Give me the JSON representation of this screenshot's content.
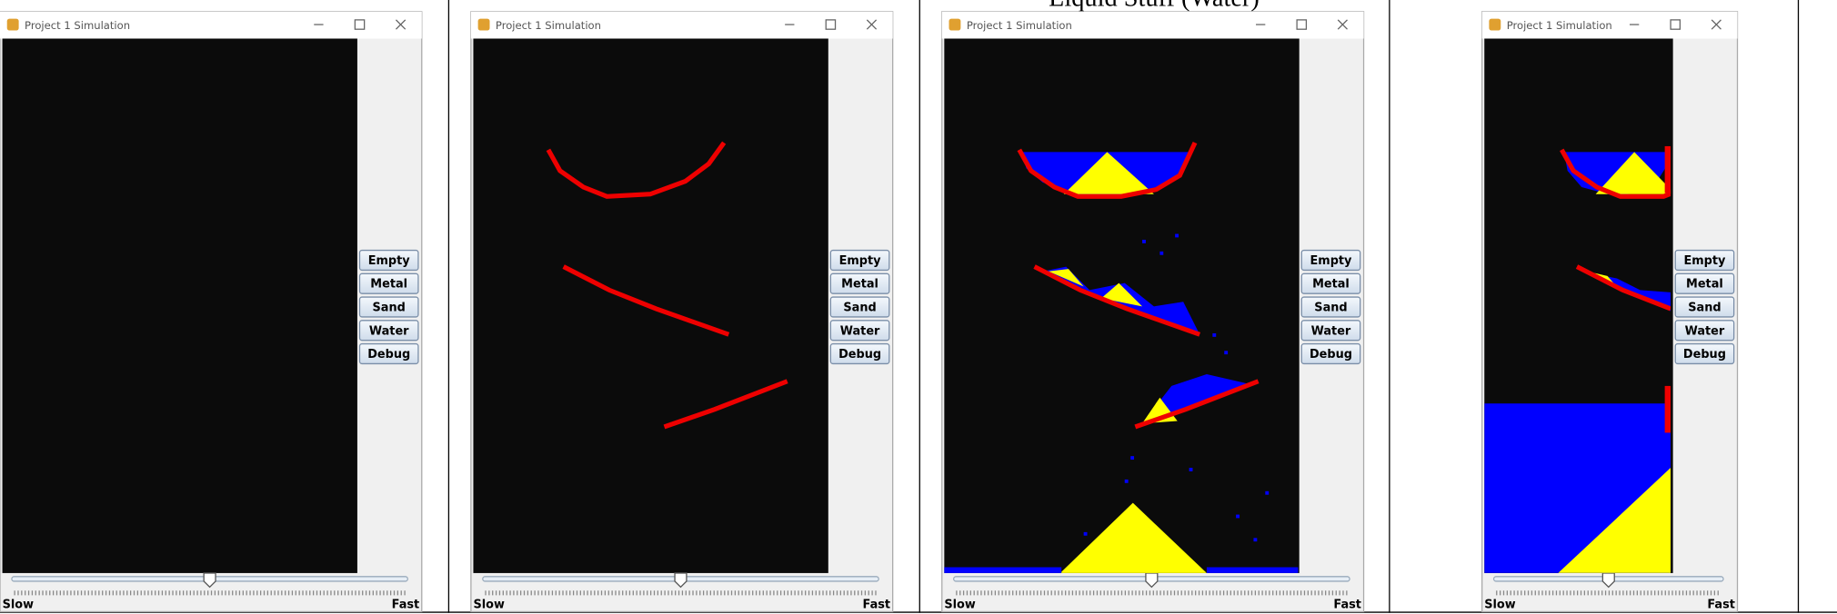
{
  "header": "Liquid Stuff (Water)",
  "windows": [
    {
      "title": "Project 1 Simulation",
      "buttons": [
        "Empty",
        "Metal",
        "Sand",
        "Water",
        "Debug"
      ],
      "slider": {
        "min_label": "Slow",
        "max_label": "Fast"
      }
    },
    {
      "title": "Project 1 Simulation",
      "buttons": [
        "Empty",
        "Metal",
        "Sand",
        "Water",
        "Debug"
      ],
      "slider": {
        "min_label": "Slow",
        "max_label": "Fast"
      }
    },
    {
      "title": "Project 1 Simulation",
      "buttons": [
        "Empty",
        "Metal",
        "Sand",
        "Water",
        "Debug"
      ],
      "slider": {
        "min_label": "Slow",
        "max_label": "Fast"
      }
    },
    {
      "title": "Project 1 Simulation",
      "buttons": [
        "Empty",
        "Metal",
        "Sand",
        "Water",
        "Debug"
      ],
      "slider": {
        "min_label": "Slow",
        "max_label": "Fast"
      }
    }
  ]
}
